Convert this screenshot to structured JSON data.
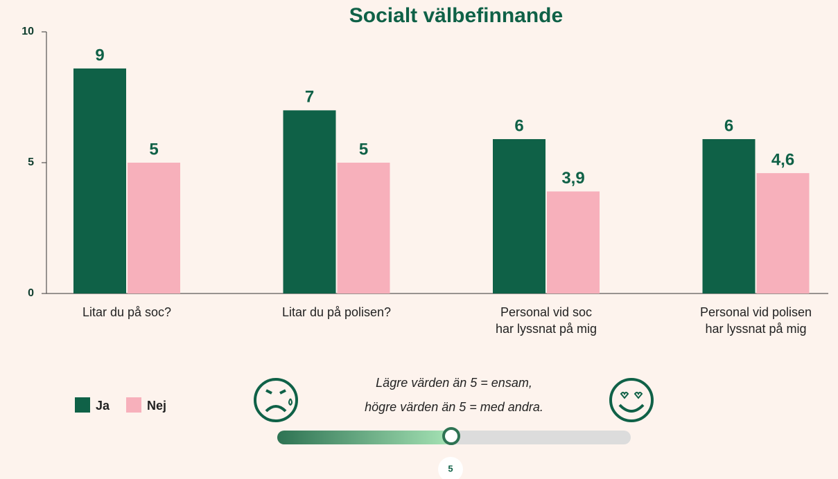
{
  "chart_data": {
    "type": "bar",
    "title": "Socialt välbefinnande",
    "categories": [
      "Litar du på soc?",
      "Litar du på polisen?",
      "Personal vid soc\nhar lyssnat på mig",
      "Personal vid polisen\nhar lyssnat på mig"
    ],
    "series": [
      {
        "name": "Ja",
        "color": "#0f6147",
        "values": [
          8.6,
          7,
          5.9,
          5.9
        ],
        "value_labels": [
          "9",
          "7",
          "6",
          "6"
        ]
      },
      {
        "name": "Nej",
        "color": "#f7b0bb",
        "values": [
          5,
          5,
          3.9,
          4.6
        ],
        "value_labels": [
          "5",
          "5",
          "3,9",
          "4,6"
        ]
      }
    ],
    "ylim": [
      0,
      10
    ],
    "yticks": [
      0,
      5,
      10
    ],
    "grid": false,
    "legend": "bottom-left",
    "note": [
      "Lägre värden än 5 = ensam,",
      "högre värden än 5 = med andra."
    ],
    "scale_marker": "5"
  }
}
